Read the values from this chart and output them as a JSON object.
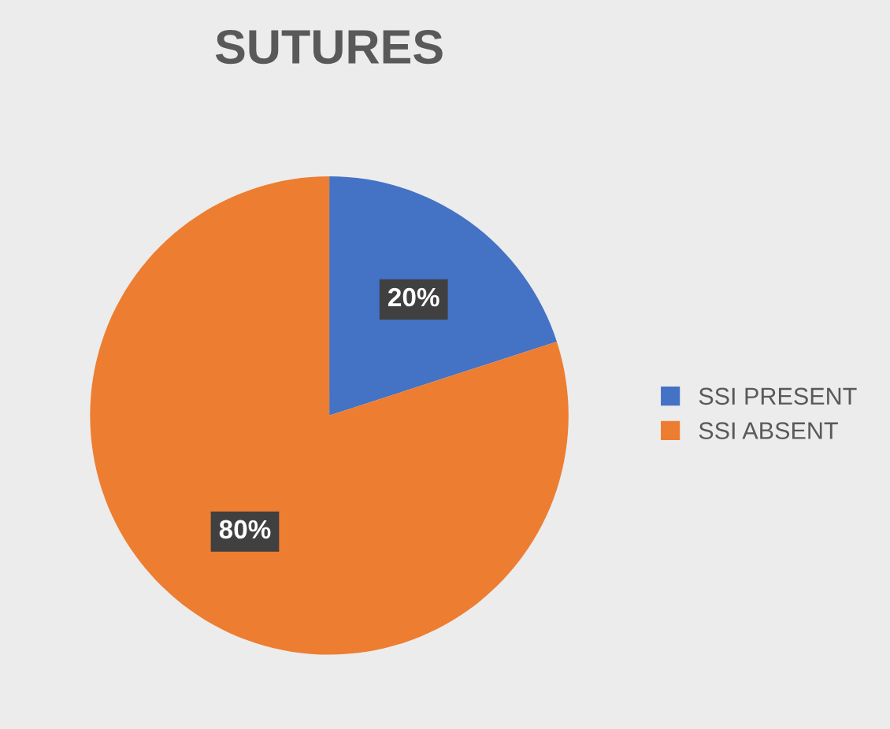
{
  "chart_data": {
    "type": "pie",
    "title": "SUTURES",
    "categories": [
      "SSI PRESENT",
      "SSI ABSENT"
    ],
    "values": [
      20,
      80
    ],
    "colors": [
      "#4472c4",
      "#ed7d31"
    ],
    "value_labels": [
      "20%",
      "80%"
    ],
    "legend": "right"
  }
}
